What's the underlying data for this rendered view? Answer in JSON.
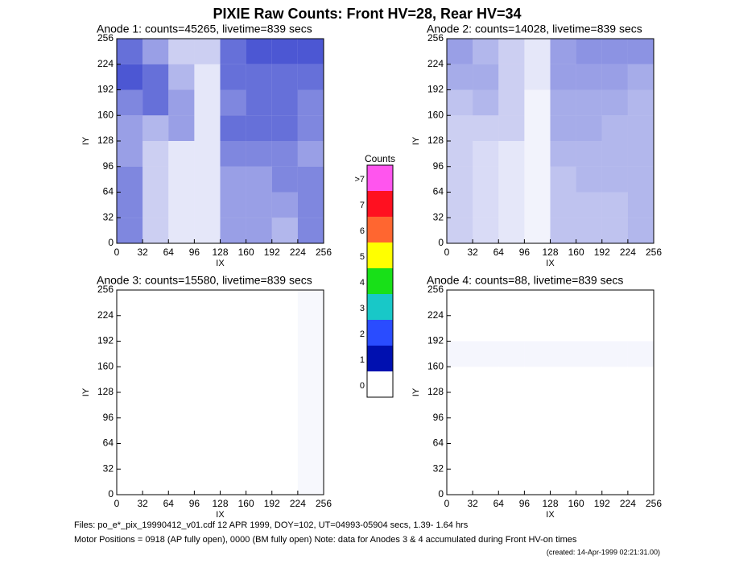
{
  "title": "PIXIE Raw Counts:  Front HV=28, Rear HV=34",
  "footer": [
    "Files: po_e*_pix_19990412_v01.cdf    12 APR 1999, DOY=102, UT=04993-05904 secs,  1.39- 1.64 hrs",
    "Motor Positions = 0918 (AP fully open), 0000 (BM fully open)    Note: data for Anodes 3 & 4 accumulated during Front HV-on times",
    "(created: 14-Apr-1999 02:21:31.00)"
  ],
  "chart_data": [
    {
      "type": "heatmap",
      "title": "Anode 1: counts=45265, livetime=839 secs",
      "xlabel": "IX",
      "ylabel": "IY",
      "xlim": [
        0,
        256
      ],
      "ylim": [
        0,
        256
      ],
      "xticks": [
        0,
        32,
        64,
        96,
        128,
        160,
        192,
        224,
        256
      ],
      "yticks": [
        0,
        32,
        64,
        96,
        128,
        160,
        192,
        224,
        256
      ],
      "xbins": [
        0,
        32,
        64,
        96,
        128,
        160,
        192,
        224,
        256
      ],
      "ybins": [
        0,
        32,
        64,
        96,
        128,
        160,
        192,
        224,
        256
      ],
      "color": "#0010c0",
      "values": [
        [
          0.5,
          0.2,
          0.1,
          0.1,
          0.4,
          0.4,
          0.3,
          0.5
        ],
        [
          0.5,
          0.2,
          0.1,
          0.1,
          0.4,
          0.4,
          0.4,
          0.5
        ],
        [
          0.5,
          0.2,
          0.1,
          0.1,
          0.4,
          0.4,
          0.5,
          0.5
        ],
        [
          0.4,
          0.2,
          0.1,
          0.1,
          0.5,
          0.5,
          0.5,
          0.4
        ],
        [
          0.4,
          0.3,
          0.4,
          0.1,
          0.6,
          0.6,
          0.6,
          0.5
        ],
        [
          0.5,
          0.6,
          0.4,
          0.1,
          0.5,
          0.6,
          0.6,
          0.5
        ],
        [
          0.7,
          0.6,
          0.3,
          0.1,
          0.6,
          0.6,
          0.6,
          0.6
        ],
        [
          0.6,
          0.4,
          0.2,
          0.2,
          0.6,
          0.7,
          0.7,
          0.7
        ]
      ]
    },
    {
      "type": "heatmap",
      "title": "Anode 2: counts=14028, livetime=839 secs",
      "xlabel": "IX",
      "ylabel": "IY",
      "xlim": [
        0,
        256
      ],
      "ylim": [
        0,
        256
      ],
      "xticks": [
        0,
        32,
        64,
        96,
        128,
        160,
        192,
        224,
        256
      ],
      "yticks": [
        0,
        32,
        64,
        96,
        128,
        160,
        192,
        224,
        256
      ],
      "xbins": [
        0,
        32,
        64,
        96,
        128,
        160,
        192,
        224,
        256
      ],
      "ybins": [
        0,
        32,
        64,
        96,
        128,
        160,
        192,
        224,
        256
      ],
      "color": "#0010c0",
      "values": [
        [
          0.2,
          0.15,
          0.1,
          0.05,
          0.25,
          0.25,
          0.25,
          0.3
        ],
        [
          0.2,
          0.15,
          0.1,
          0.05,
          0.25,
          0.25,
          0.25,
          0.3
        ],
        [
          0.2,
          0.15,
          0.1,
          0.05,
          0.25,
          0.3,
          0.3,
          0.3
        ],
        [
          0.2,
          0.15,
          0.1,
          0.05,
          0.3,
          0.3,
          0.3,
          0.3
        ],
        [
          0.2,
          0.2,
          0.2,
          0.05,
          0.35,
          0.35,
          0.3,
          0.3
        ],
        [
          0.25,
          0.3,
          0.2,
          0.05,
          0.35,
          0.35,
          0.35,
          0.3
        ],
        [
          0.35,
          0.35,
          0.2,
          0.1,
          0.4,
          0.4,
          0.4,
          0.35
        ],
        [
          0.4,
          0.3,
          0.2,
          0.1,
          0.4,
          0.45,
          0.45,
          0.45
        ]
      ]
    },
    {
      "type": "heatmap",
      "title": "Anode 3: counts=15580, livetime=839 secs",
      "xlabel": "IX",
      "ylabel": "IY",
      "xlim": [
        0,
        256
      ],
      "ylim": [
        0,
        256
      ],
      "xticks": [
        0,
        32,
        64,
        96,
        128,
        160,
        192,
        224,
        256
      ],
      "yticks": [
        0,
        32,
        64,
        96,
        128,
        160,
        192,
        224,
        256
      ],
      "xbins": [
        0,
        32,
        64,
        96,
        128,
        160,
        192,
        224,
        256
      ],
      "ybins": [
        0,
        32,
        64,
        96,
        128,
        160,
        192,
        224,
        256
      ],
      "color": "#0010c0",
      "values": [
        [
          0,
          0,
          0,
          0,
          0,
          0,
          0,
          0.03
        ],
        [
          0,
          0,
          0,
          0,
          0,
          0,
          0,
          0.03
        ],
        [
          0,
          0,
          0,
          0,
          0,
          0,
          0,
          0.03
        ],
        [
          0,
          0,
          0,
          0,
          0,
          0,
          0,
          0.03
        ],
        [
          0,
          0,
          0,
          0,
          0,
          0,
          0,
          0.03
        ],
        [
          0,
          0,
          0,
          0,
          0,
          0,
          0,
          0.03
        ],
        [
          0,
          0,
          0,
          0,
          0,
          0,
          0,
          0.03
        ],
        [
          0,
          0,
          0,
          0,
          0,
          0,
          0,
          0.03
        ]
      ]
    },
    {
      "type": "heatmap",
      "title": "Anode 4: counts=88, livetime=839 secs",
      "xlabel": "IX",
      "ylabel": "IY",
      "xlim": [
        0,
        256
      ],
      "ylim": [
        0,
        256
      ],
      "xticks": [
        0,
        32,
        64,
        96,
        128,
        160,
        192,
        224,
        256
      ],
      "yticks": [
        0,
        32,
        64,
        96,
        128,
        160,
        192,
        224,
        256
      ],
      "xbins": [
        0,
        32,
        64,
        96,
        128,
        160,
        192,
        224,
        256
      ],
      "ybins": [
        0,
        32,
        64,
        96,
        128,
        160,
        192,
        224,
        256
      ],
      "color": "#0010c0",
      "values": [
        [
          0,
          0,
          0,
          0,
          0,
          0,
          0,
          0
        ],
        [
          0,
          0,
          0,
          0,
          0,
          0,
          0,
          0
        ],
        [
          0,
          0,
          0,
          0,
          0,
          0,
          0,
          0
        ],
        [
          0,
          0,
          0,
          0,
          0,
          0,
          0,
          0
        ],
        [
          0,
          0,
          0,
          0,
          0,
          0,
          0,
          0
        ],
        [
          0.04,
          0.04,
          0.04,
          0.04,
          0.04,
          0.04,
          0.04,
          0.04
        ],
        [
          0,
          0,
          0,
          0,
          0,
          0,
          0,
          0
        ],
        [
          0,
          0,
          0,
          0,
          0,
          0,
          0,
          0
        ]
      ]
    },
    {
      "type": "colorbar",
      "title": "Counts",
      "categories": [
        "0",
        "1",
        "2",
        "3",
        "4",
        "5",
        "6",
        "7",
        ">7"
      ],
      "colors": [
        "#ffffff",
        "#0010b0",
        "#2a4cff",
        "#18c8c8",
        "#18e018",
        "#ffff00",
        "#ff6630",
        "#ff1020",
        "#ff55ee"
      ]
    }
  ]
}
